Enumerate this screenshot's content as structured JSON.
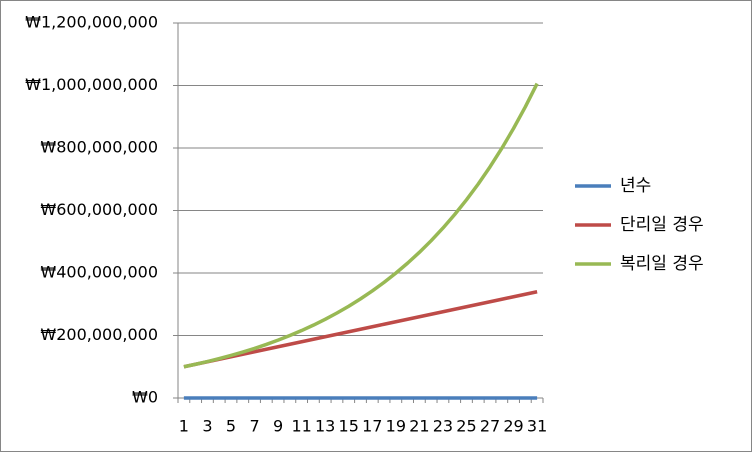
{
  "chart_data": {
    "type": "line",
    "categories": [
      "1",
      null,
      "3",
      null,
      "5",
      null,
      "7",
      null,
      "9",
      null,
      "11",
      null,
      "13",
      null,
      "15",
      null,
      "17",
      null,
      "19",
      null,
      "21",
      null,
      "23",
      null,
      "25",
      null,
      "27",
      null,
      "29",
      null,
      "31"
    ],
    "series": [
      {
        "name": "년수",
        "color": "#4a7ebb",
        "values": [
          1,
          2,
          3,
          4,
          5,
          6,
          7,
          8,
          9,
          10,
          11,
          12,
          13,
          14,
          15,
          16,
          17,
          18,
          19,
          20,
          21,
          22,
          23,
          24,
          25,
          26,
          27,
          28,
          29,
          30,
          31
        ]
      },
      {
        "name": "단리일 경우",
        "color": "#be4b48",
        "values": [
          100000000,
          108000000,
          116000000,
          124000000,
          132000000,
          140000000,
          148000000,
          156000000,
          164000000,
          172000000,
          180000000,
          188000000,
          196000000,
          204000000,
          212000000,
          220000000,
          228000000,
          236000000,
          244000000,
          252000000,
          260000000,
          268000000,
          276000000,
          284000000,
          292000000,
          300000000,
          308000000,
          316000000,
          324000000,
          332000000,
          340000000
        ]
      },
      {
        "name": "복리일 경우",
        "color": "#98b954",
        "values": [
          100000000,
          108000000,
          116640000,
          125971200,
          136048896,
          146932808,
          158687432,
          171382427,
          185093021,
          199900463,
          215892500,
          233163900,
          251817012,
          271962373,
          293719362,
          317216911,
          342594264,
          370001805,
          399601950,
          431570106,
          466095714,
          503383372,
          543654041,
          587146365,
          634118074,
          684847520,
          739635321,
          798806147,
          862710639,
          931727490,
          1006265689
        ]
      }
    ],
    "ylim": [
      0,
      1200000000
    ],
    "yticks": [
      {
        "value": 0,
        "label": "₩0"
      },
      {
        "value": 200000000,
        "label": "₩200,000,000"
      },
      {
        "value": 400000000,
        "label": "₩400,000,000"
      },
      {
        "value": 600000000,
        "label": "₩600,000,000"
      },
      {
        "value": 800000000,
        "label": "₩800,000,000"
      },
      {
        "value": 1000000000,
        "label": "₩1,000,000,000"
      },
      {
        "value": 1200000000,
        "label": "₩1,200,000,000"
      }
    ],
    "grid": true
  }
}
